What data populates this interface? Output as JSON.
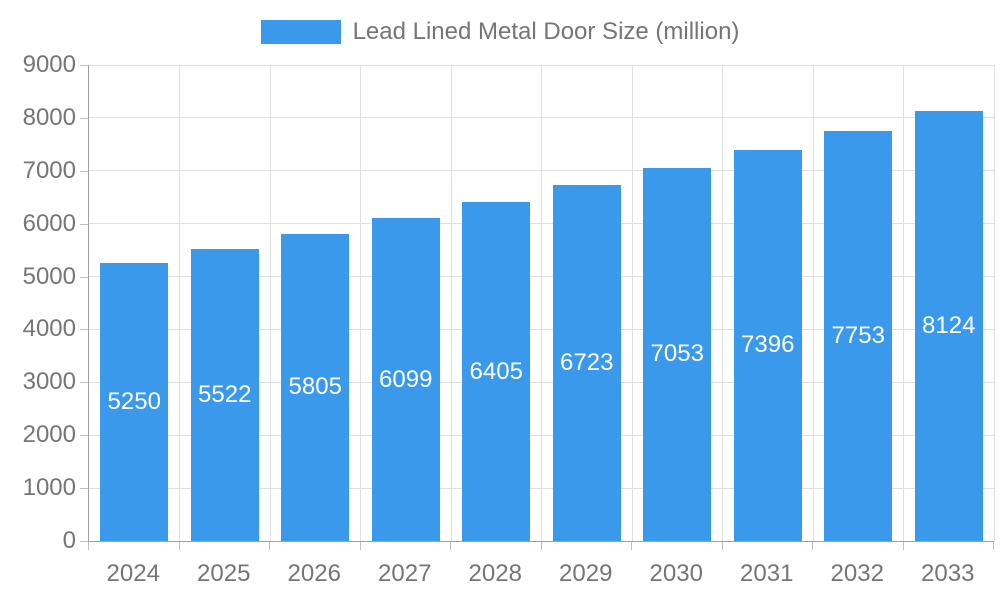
{
  "chart_data": {
    "type": "bar",
    "title": "Lead Lined Metal Door Size (million)",
    "legend": [
      "Lead Lined Metal Door Size (million)"
    ],
    "legend_position": "top",
    "categories": [
      "2024",
      "2025",
      "2026",
      "2027",
      "2028",
      "2029",
      "2030",
      "2031",
      "2032",
      "2033"
    ],
    "values": [
      5250,
      5522,
      5805,
      6099,
      6405,
      6723,
      7053,
      7396,
      7753,
      8124
    ],
    "value_labels": [
      "5250",
      "5522",
      "5805",
      "6099",
      "6405",
      "6723",
      "7053",
      "7396",
      "7753",
      "8124"
    ],
    "xlabel": "",
    "ylabel": "",
    "ylim": [
      0,
      9000
    ],
    "y_ticks": [
      0,
      1000,
      2000,
      3000,
      4000,
      5000,
      6000,
      7000,
      8000,
      9000
    ],
    "grid": true,
    "colors": {
      "bar": "#3B99EC",
      "value_label": "#FFFFFF",
      "axis_label": "#757575",
      "grid_line": "#E0E0E0",
      "axis_line": "#A0A0A0",
      "tick": "#BDBDBD",
      "background": "#FFFFFF"
    }
  }
}
